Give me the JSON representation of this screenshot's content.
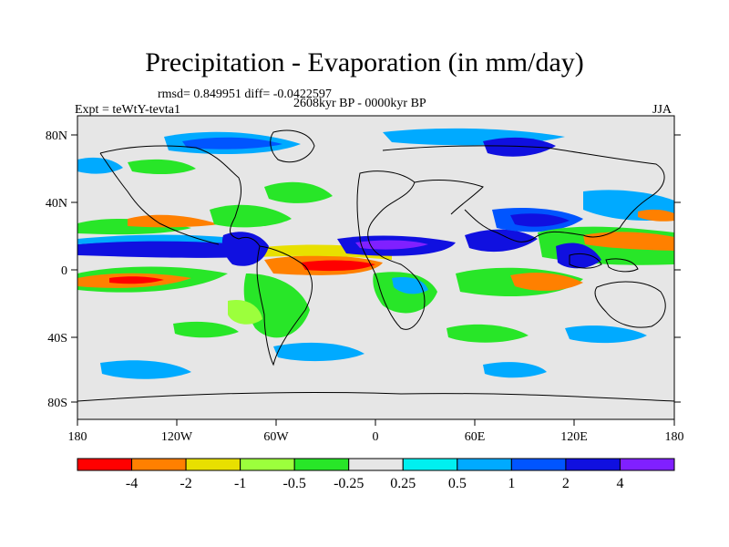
{
  "title": "Precipitation - Evaporation (in mm/day)",
  "stats": "rmsd= 0.849951 diff= -0.0422597",
  "period": "2608kyr BP - 0000kyr BP",
  "experiment": "Expt = teWtY-tevta1",
  "season": "JJA",
  "axes": {
    "lat_ticks": [
      "80N",
      "40N",
      "0",
      "40S",
      "80S"
    ],
    "lon_ticks": [
      "180",
      "120W",
      "60W",
      "0",
      "60E",
      "120E",
      "180"
    ]
  },
  "colorbar": {
    "colors": [
      "#ff0000",
      "#ff8000",
      "#e8e000",
      "#9cff3c",
      "#28e628",
      "#e6e6e6",
      "#00f0f0",
      "#00aaff",
      "#0055ff",
      "#1010e0",
      "#8020ff"
    ],
    "labels": [
      "-4",
      "-2",
      "-1",
      "-0.5",
      "-0.25",
      "0.25",
      "0.5",
      "1",
      "2",
      "4"
    ]
  },
  "colors": {
    "background_land_ocean": "#e6e6e6",
    "coastline": "#000000"
  }
}
